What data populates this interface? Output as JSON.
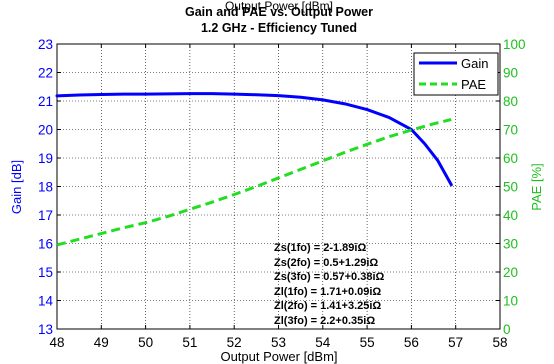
{
  "chart_data": {
    "type": "line",
    "title": "Gain and PAE vs. Output Power",
    "subtitle": "1.2 GHz - Efficiency Tuned",
    "xlabel": "Output Power [dBm]",
    "ylabel_left": "Gain [dB]",
    "ylabel_right": "PAE [%]",
    "xlim": [
      48,
      58
    ],
    "ylim_left": [
      13,
      23
    ],
    "ylim_right": [
      0,
      100
    ],
    "x_ticks": [
      "48",
      "49",
      "50",
      "51",
      "52",
      "53",
      "54",
      "55",
      "56",
      "57",
      "58"
    ],
    "y_left_ticks": [
      "13",
      "14",
      "15",
      "16",
      "17",
      "18",
      "19",
      "20",
      "21",
      "22",
      "23"
    ],
    "y_right_ticks": [
      "0",
      "10",
      "20",
      "30",
      "40",
      "50",
      "60",
      "70",
      "80",
      "90",
      "100"
    ],
    "grid": true,
    "legend_position": "top-right",
    "series": [
      {
        "name": "Gain",
        "axis": "left",
        "color": "#0000ff",
        "style": "solid",
        "x": [
          48.0,
          48.5,
          49.0,
          49.5,
          50.0,
          50.5,
          51.0,
          51.5,
          52.0,
          52.5,
          53.0,
          53.5,
          54.0,
          54.5,
          55.0,
          55.5,
          56.0,
          56.3,
          56.6,
          56.9
        ],
        "y": [
          21.18,
          21.21,
          21.23,
          21.24,
          21.24,
          21.25,
          21.26,
          21.26,
          21.24,
          21.22,
          21.19,
          21.13,
          21.04,
          20.9,
          20.7,
          20.42,
          20.0,
          19.5,
          18.9,
          18.06
        ]
      },
      {
        "name": "PAE",
        "axis": "right",
        "color": "#22dd22",
        "style": "dashed",
        "x": [
          48.0,
          48.5,
          49.0,
          49.5,
          50.0,
          50.5,
          51.0,
          51.5,
          52.0,
          52.5,
          53.0,
          53.5,
          54.0,
          54.5,
          55.0,
          55.5,
          56.0,
          56.5,
          56.9
        ],
        "y": [
          29.5,
          31.5,
          33.5,
          35.5,
          37.3,
          39.5,
          42.0,
          44.5,
          47.2,
          50.0,
          53.0,
          56.0,
          59.0,
          62.0,
          64.8,
          67.5,
          69.8,
          72.0,
          73.5
        ]
      }
    ],
    "annotations": [
      "Zs(1fo) = 2-1.89iΩ",
      "Zs(2fo) = 0.5+1.29iΩ",
      "Zs(3fo) = 0.57+0.38iΩ",
      "Zl(1fo) = 1.71+0.09iΩ",
      "Zl(2fo) = 1.41+3.25iΩ",
      "Zl(3fo) = 2.2+0.35iΩ"
    ]
  }
}
